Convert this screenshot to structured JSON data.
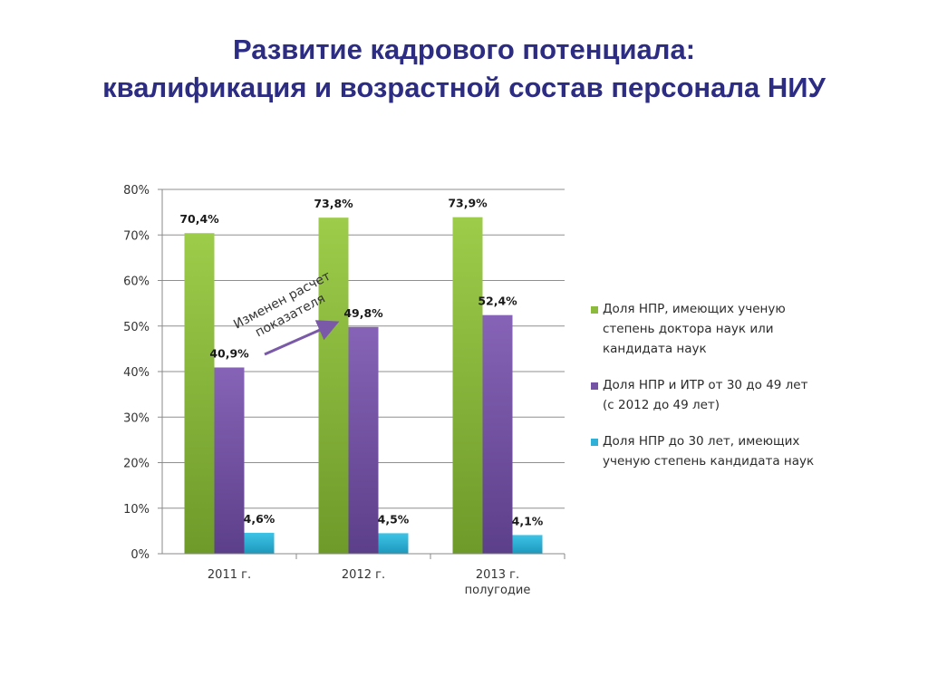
{
  "title": {
    "line1": "Развитие кадрового потенциала:",
    "line2": "квалификация и возрастной состав персонала НИУ"
  },
  "chart_data": {
    "type": "bar",
    "categories": [
      "2011 г.",
      "2012 г.",
      "2013 г. полугодие"
    ],
    "category_lines": [
      [
        "2011 г."
      ],
      [
        "2012 г."
      ],
      [
        "2013 г.",
        "полугодие"
      ]
    ],
    "series": [
      {
        "name": "Доля НПР, имеющих ученую степень доктора наук или кандидата наук",
        "values": [
          70.4,
          73.8,
          73.9
        ],
        "labels": [
          "70,4%",
          "73,8%",
          "73,9%"
        ],
        "color": "#8cba3c"
      },
      {
        "name": "Доля НПР и ИТР от 30 до 49 лет (с 2012 до 49 лет)",
        "values": [
          40.9,
          49.8,
          52.4
        ],
        "labels": [
          "40,9%",
          "49,8%",
          "52,4%"
        ],
        "color": "#7452a4"
      },
      {
        "name": "Доля НПР до 30 лет, имеющих ученую степень кандидата наук",
        "values": [
          4.6,
          4.5,
          4.1
        ],
        "labels": [
          "4,6%",
          "4,5%",
          "4,1%"
        ],
        "color": "#2fb0d6"
      }
    ],
    "ylim": [
      0,
      80
    ],
    "yticks": [
      "0%",
      "10%",
      "20%",
      "30%",
      "40%",
      "50%",
      "60%",
      "70%",
      "80%"
    ],
    "grid": true,
    "legend_position": "right",
    "annotation": {
      "lines": [
        "Изменен расчет",
        "показателя"
      ]
    }
  },
  "legend": {
    "items": [
      {
        "label": "Доля НПР, имеющих ученую степень доктора наук или кандидата наук",
        "color": "#8cba3c"
      },
      {
        "label": "Доля НПР и ИТР от 30 до 49 лет (с 2012 до 49 лет)",
        "color": "#7452a4"
      },
      {
        "label": "Доля НПР до 30 лет, имеющих ученую степень кандидата наук",
        "color": "#2fb0d6"
      }
    ]
  }
}
